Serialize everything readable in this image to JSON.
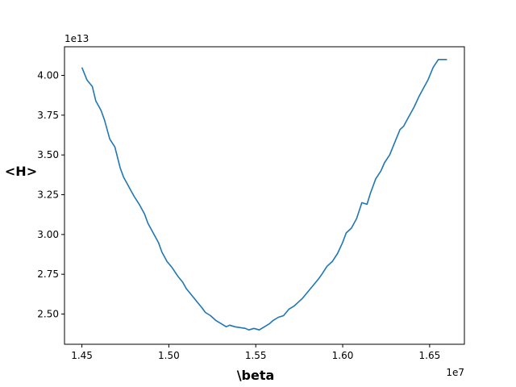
{
  "chart_data": {
    "type": "line",
    "title": "",
    "xlabel": "\\beta",
    "ylabel": "<H>",
    "x_offset_label": "1e7",
    "y_offset_label": "1e13",
    "xlim": [
      1.44,
      1.67
    ],
    "ylim": [
      2.31,
      4.18
    ],
    "x_ticks": [
      1.45,
      1.5,
      1.55,
      1.6,
      1.65
    ],
    "x_tick_labels": [
      "1.45",
      "1.50",
      "1.55",
      "1.60",
      "1.65"
    ],
    "y_ticks": [
      2.5,
      2.75,
      3.0,
      3.25,
      3.5,
      3.75,
      4.0
    ],
    "y_tick_labels": [
      "2.50",
      "2.75",
      "3.00",
      "3.25",
      "3.50",
      "3.75",
      "4.00"
    ],
    "grid": false,
    "series": [
      {
        "color": "#1f77b4",
        "x": [
          1.45,
          1.453,
          1.456,
          1.458,
          1.461,
          1.463,
          1.466,
          1.469,
          1.472,
          1.474,
          1.477,
          1.48,
          1.483,
          1.486,
          1.488,
          1.491,
          1.494,
          1.496,
          1.499,
          1.502,
          1.505,
          1.508,
          1.51,
          1.513,
          1.516,
          1.519,
          1.521,
          1.524,
          1.527,
          1.53,
          1.533,
          1.535,
          1.538,
          1.541,
          1.544,
          1.546,
          1.549,
          1.552,
          1.555,
          1.558,
          1.56,
          1.563,
          1.566,
          1.569,
          1.572,
          1.574,
          1.577,
          1.58,
          1.583,
          1.586,
          1.588,
          1.591,
          1.594,
          1.597,
          1.6,
          1.602,
          1.605,
          1.608,
          1.611,
          1.614,
          1.616,
          1.619,
          1.622,
          1.624,
          1.627,
          1.63,
          1.633,
          1.635,
          1.638,
          1.641,
          1.644,
          1.647,
          1.649,
          1.652,
          1.655,
          1.658,
          1.66
        ],
        "y": [
          4.05,
          3.97,
          3.93,
          3.84,
          3.78,
          3.72,
          3.6,
          3.55,
          3.42,
          3.36,
          3.3,
          3.24,
          3.19,
          3.13,
          3.07,
          3.01,
          2.95,
          2.89,
          2.83,
          2.79,
          2.74,
          2.7,
          2.66,
          2.62,
          2.58,
          2.54,
          2.51,
          2.49,
          2.46,
          2.44,
          2.42,
          2.43,
          2.42,
          2.415,
          2.41,
          2.4,
          2.41,
          2.4,
          2.42,
          2.44,
          2.46,
          2.48,
          2.49,
          2.53,
          2.55,
          2.57,
          2.6,
          2.64,
          2.68,
          2.72,
          2.75,
          2.8,
          2.83,
          2.88,
          2.95,
          3.01,
          3.04,
          3.1,
          3.2,
          3.19,
          3.26,
          3.35,
          3.4,
          3.45,
          3.5,
          3.58,
          3.66,
          3.68,
          3.74,
          3.8,
          3.87,
          3.93,
          3.97,
          4.05,
          4.1,
          4.1,
          4.1
        ]
      }
    ]
  }
}
